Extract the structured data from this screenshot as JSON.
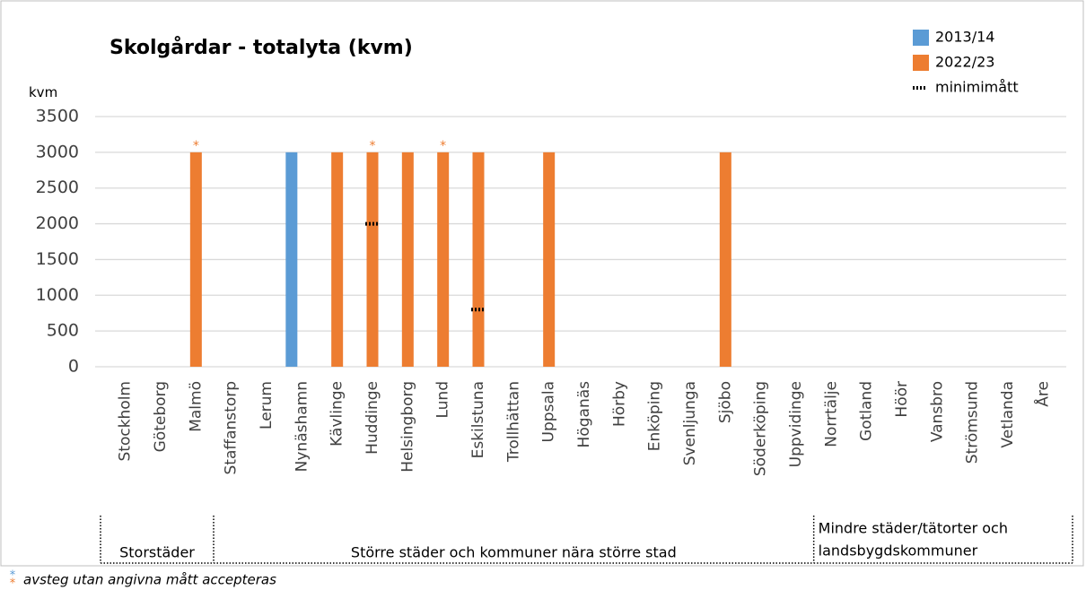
{
  "chart_data": {
    "type": "bar",
    "title": "Skolgårdar - totalyta (kvm)",
    "ylabel": "kvm",
    "categories": [
      "Stockholm",
      "Göteborg",
      "Malmö",
      "Staffanstorp",
      "Lerum",
      "Nynäshamn",
      "Kävlinge",
      "Huddinge",
      "Helsingborg",
      "Lund",
      "Eskilstuna",
      "Trollhättan",
      "Uppsala",
      "Höganäs",
      "Hörby",
      "Enköping",
      "Svenljunga",
      "Sjöbo",
      "Söderköping",
      "Uppvidinge",
      "Norrtälje",
      "Gotland",
      "Höör",
      "Vansbro",
      "Strömsund",
      "Vetlanda",
      "Åre"
    ],
    "series": [
      {
        "name": "2013/14",
        "color": "#5b9bd5",
        "values": [
          null,
          null,
          null,
          null,
          null,
          3000,
          null,
          null,
          null,
          null,
          null,
          null,
          null,
          null,
          null,
          null,
          null,
          null,
          null,
          null,
          null,
          null,
          null,
          null,
          null,
          null,
          null
        ]
      },
      {
        "name": "2022/23",
        "color": "#ed7d31",
        "values": [
          null,
          null,
          3000,
          null,
          null,
          null,
          3000,
          3000,
          3000,
          3000,
          3000,
          null,
          3000,
          null,
          null,
          null,
          null,
          3000,
          null,
          null,
          null,
          null,
          null,
          null,
          null,
          null,
          null
        ]
      },
      {
        "name": "minimimått",
        "color": "#000000",
        "style": "dotted",
        "values": [
          null,
          null,
          null,
          null,
          null,
          null,
          null,
          2000,
          null,
          null,
          800,
          null,
          null,
          null,
          null,
          null,
          null,
          null,
          null,
          null,
          null,
          null,
          null,
          null,
          null,
          null,
          null
        ]
      }
    ],
    "annotations": [
      {
        "category": "Malmö",
        "text": "*",
        "color": "#ed7d31"
      },
      {
        "category": "Huddinge",
        "text": "*",
        "color": "#ed7d31"
      },
      {
        "category": "Lund",
        "text": "*",
        "color": "#ed7d31"
      }
    ],
    "groups": [
      {
        "label": "Storstäder",
        "from": "Stockholm",
        "to": "Malmö"
      },
      {
        "label": "Större städer och kommuner nära större stad",
        "from": "Staffanstorp",
        "to": "Uppvidinge"
      },
      {
        "label": [
          "Mindre städer/tätorter och",
          "landsbygdskommuner"
        ],
        "from": "Norrtälje",
        "to": "Åre"
      }
    ],
    "footnote": {
      "markers": [
        {
          "text": "*",
          "color": "#5b9bd5"
        },
        {
          "text": "*",
          "color": "#ed7d31"
        }
      ],
      "text": "avsteg utan angivna mått accepteras"
    },
    "ylim": [
      0,
      3500
    ],
    "yticks": [
      0,
      500,
      1000,
      1500,
      2000,
      2500,
      3000,
      3500
    ],
    "grid": true
  }
}
